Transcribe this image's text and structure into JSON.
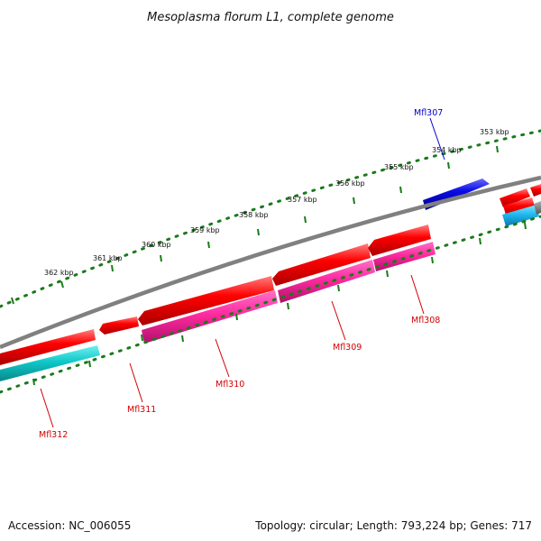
{
  "title": "Mesoplasma florum L1, complete genome",
  "accession": "Accession: NC_006055",
  "summary": "Topology: circular; Length: 793,224 bp; Genes: 717",
  "colors": {
    "backbone": "#808080",
    "tick": "#1a7a1a",
    "gene_red": "#f00000",
    "gene_blue": "#0a0ae6",
    "label_red": "#d10000",
    "label_blue": "#0000cc",
    "track_pink": "#ff2aa0",
    "track_teal": "#10c8c8"
  },
  "kbp_labels": [
    "362 kbp",
    "361 kbp",
    "360 kbp",
    "359 kbp",
    "358 kbp",
    "357 kbp",
    "356 kbp",
    "355 kbp",
    "354 kbp",
    "353 kbp"
  ],
  "genes": [
    {
      "id": "Mfl307",
      "strand": "forward",
      "color": "blue"
    },
    {
      "id": "Mfl308",
      "strand": "reverse",
      "color": "red"
    },
    {
      "id": "Mfl309",
      "strand": "reverse",
      "color": "red"
    },
    {
      "id": "Mfl310",
      "strand": "reverse",
      "color": "red"
    },
    {
      "id": "Mfl311",
      "strand": "reverse",
      "color": "red"
    },
    {
      "id": "Mfl312",
      "strand": "reverse",
      "color": "red"
    }
  ]
}
